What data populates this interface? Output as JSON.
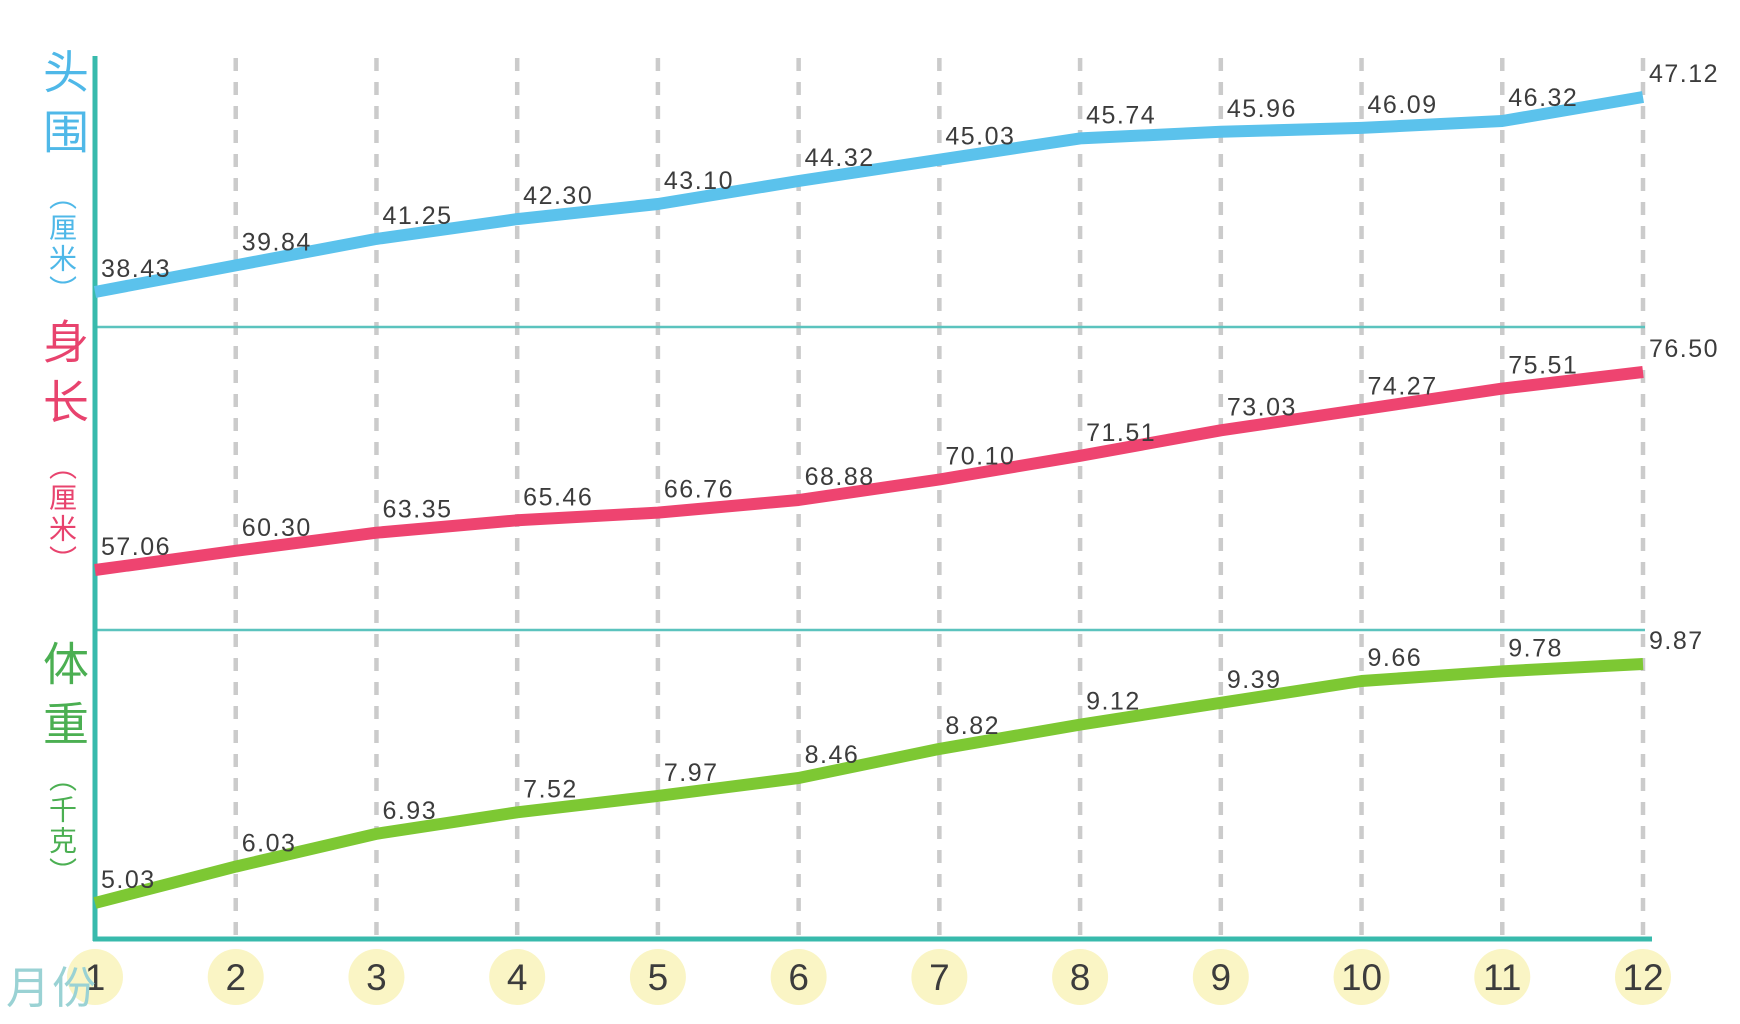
{
  "chart_data": {
    "type": "line",
    "title": "",
    "x_label": "月份",
    "x": [
      1,
      2,
      3,
      4,
      5,
      6,
      7,
      8,
      9,
      10,
      11,
      12
    ],
    "grid": "vertical-dashed",
    "legend_position": "left-axis-stacked",
    "series": [
      {
        "key": "head-circumference",
        "name": "头围",
        "unit": "（厘米）",
        "color": "#5BC2EC",
        "label_color": "#4FB8E8",
        "values": [
          38.43,
          39.84,
          41.25,
          42.3,
          43.1,
          44.32,
          45.03,
          45.74,
          45.96,
          46.09,
          46.32,
          47.12
        ]
      },
      {
        "key": "body-length",
        "name": "身长",
        "unit": "（厘米）",
        "color": "#EE4470",
        "label_color": "#E8436E",
        "values": [
          57.06,
          60.3,
          63.35,
          65.46,
          66.76,
          68.88,
          70.1,
          71.51,
          73.03,
          74.27,
          75.51,
          76.5
        ]
      },
      {
        "key": "weight",
        "name": "体重",
        "unit": "（千克）",
        "color": "#7DC833",
        "label_color": "#4BAF52",
        "values": [
          5.03,
          6.03,
          6.93,
          7.52,
          7.97,
          8.46,
          8.82,
          9.12,
          9.39,
          9.66,
          9.78,
          9.87
        ]
      }
    ],
    "colors": {
      "axis": "#38BAAC",
      "separator": "#5BC3BE",
      "gridline": "#CBCBCB",
      "value_label": "#3C3C3C",
      "month_circle_fill": "#FAF5C5",
      "month_number": "#3C3C3C",
      "x_label": "#9AD2D4",
      "background": "#FFFFFF"
    }
  }
}
